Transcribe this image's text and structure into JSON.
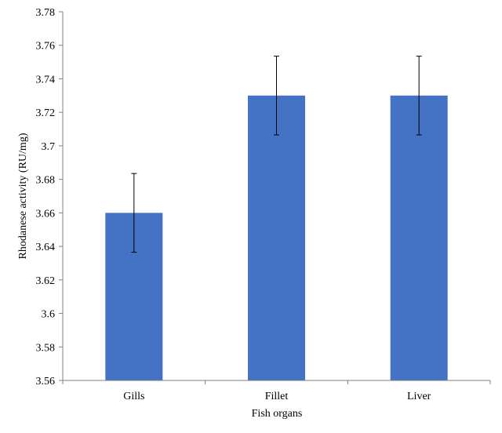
{
  "chart_data": {
    "type": "bar",
    "title": "",
    "xlabel": "Fish organs",
    "ylabel": "Rhodanese activity  (RU/mg)",
    "categories": [
      "Gills",
      "Fillet",
      "Liver"
    ],
    "values": [
      3.66,
      3.73,
      3.73
    ],
    "error": [
      0.0235,
      0.0235,
      0.0235
    ],
    "ylim": [
      3.56,
      3.78
    ],
    "yticks": [
      "3.56",
      "3.58",
      "3.6",
      "3.62",
      "3.64",
      "3.66",
      "3.68",
      "3.7",
      "3.72",
      "3.74",
      "3.76",
      "3.78"
    ],
    "grid": false,
    "legend": "none",
    "bar_color": "#4472C4",
    "axis_color": "#808080",
    "error_color": "#000000"
  }
}
